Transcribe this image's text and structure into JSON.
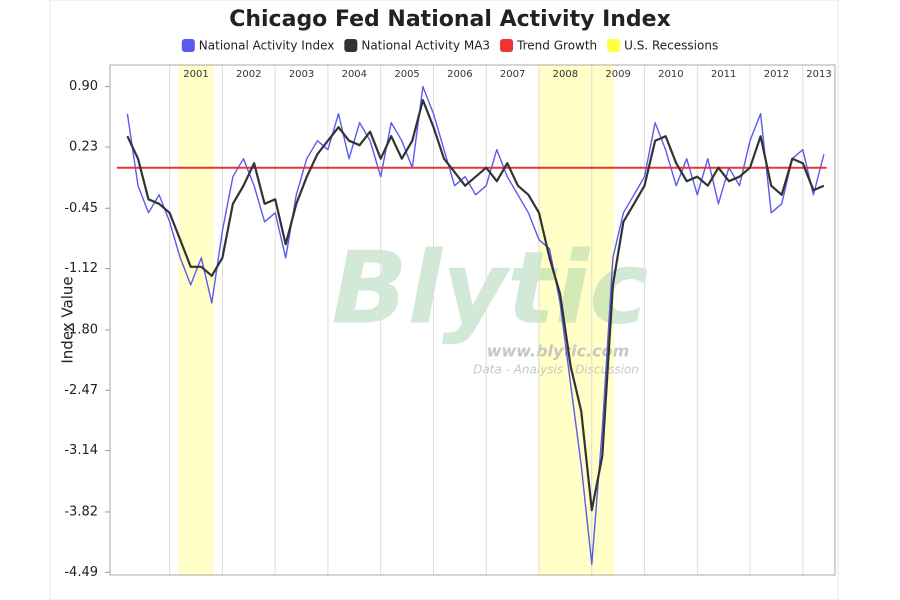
{
  "chart_data": {
    "type": "line",
    "title": "Chicago Fed National Activity Index",
    "y_label": "Index Value",
    "watermark": {
      "brand": "Blytic",
      "url": "www.blytic.com",
      "tagline": "Data - Analysis - Discussion"
    },
    "x": [
      2000.2,
      2000.4,
      2000.6,
      2000.8,
      2001.0,
      2001.2,
      2001.4,
      2001.6,
      2001.8,
      2002.0,
      2002.2,
      2002.4,
      2002.6,
      2002.8,
      2003.0,
      2003.2,
      2003.4,
      2003.6,
      2003.8,
      2004.0,
      2004.2,
      2004.4,
      2004.6,
      2004.8,
      2005.0,
      2005.2,
      2005.4,
      2005.6,
      2005.8,
      2006.0,
      2006.2,
      2006.4,
      2006.6,
      2006.8,
      2007.0,
      2007.2,
      2007.4,
      2007.6,
      2007.8,
      2008.0,
      2008.2,
      2008.4,
      2008.6,
      2008.8,
      2009.0,
      2009.2,
      2009.4,
      2009.6,
      2009.8,
      2010.0,
      2010.2,
      2010.4,
      2010.6,
      2010.8,
      2011.0,
      2011.2,
      2011.4,
      2011.6,
      2011.8,
      2012.0,
      2012.2,
      2012.4,
      2012.6,
      2012.8,
      2013.0,
      2013.2,
      2013.4
    ],
    "series": [
      {
        "name": "National Activity Index",
        "color": "#5a5aee",
        "values": [
          0.6,
          -0.2,
          -0.5,
          -0.3,
          -0.6,
          -1.0,
          -1.3,
          -1.0,
          -1.5,
          -0.7,
          -0.1,
          0.1,
          -0.2,
          -0.6,
          -0.5,
          -1.0,
          -0.3,
          0.1,
          0.3,
          0.2,
          0.6,
          0.1,
          0.5,
          0.3,
          -0.1,
          0.5,
          0.3,
          0.0,
          0.9,
          0.6,
          0.2,
          -0.2,
          -0.1,
          -0.3,
          -0.2,
          0.2,
          -0.1,
          -0.3,
          -0.5,
          -0.8,
          -0.9,
          -1.5,
          -2.4,
          -3.3,
          -4.4,
          -2.9,
          -1.0,
          -0.5,
          -0.3,
          -0.1,
          0.5,
          0.2,
          -0.2,
          0.1,
          -0.3,
          0.1,
          -0.4,
          0.0,
          -0.2,
          0.3,
          0.6,
          -0.5,
          -0.4,
          0.1,
          0.2,
          -0.3,
          0.15
        ]
      },
      {
        "name": "National Activity MA3",
        "color": "#333333",
        "values": [
          0.35,
          0.1,
          -0.35,
          -0.4,
          -0.5,
          -0.8,
          -1.1,
          -1.1,
          -1.2,
          -1.0,
          -0.4,
          -0.2,
          0.05,
          -0.4,
          -0.35,
          -0.85,
          -0.4,
          -0.1,
          0.15,
          0.3,
          0.45,
          0.3,
          0.25,
          0.4,
          0.1,
          0.35,
          0.1,
          0.3,
          0.75,
          0.45,
          0.1,
          -0.05,
          -0.2,
          -0.1,
          0.0,
          -0.15,
          0.05,
          -0.2,
          -0.3,
          -0.5,
          -1.0,
          -1.4,
          -2.2,
          -2.7,
          -3.8,
          -3.2,
          -1.3,
          -0.6,
          -0.4,
          -0.2,
          0.3,
          0.35,
          0.05,
          -0.15,
          -0.1,
          -0.2,
          0.0,
          -0.15,
          -0.1,
          0.0,
          0.35,
          -0.2,
          -0.3,
          0.1,
          0.05,
          -0.25,
          -0.2
        ]
      },
      {
        "name": "Trend Growth",
        "color": "#ee3333",
        "x": [
          2000.0,
          2013.45
        ],
        "values": [
          0,
          0
        ]
      },
      {
        "name": "U.S. Recessions",
        "color": "#ffff44",
        "ranges": [
          [
            2001.17,
            2001.83
          ],
          [
            2007.98,
            2009.42
          ]
        ]
      }
    ],
    "xlim": [
      1999.87,
      2013.61
    ],
    "xticks": [
      {
        "value": 2001,
        "label": "2001"
      },
      {
        "value": 2002,
        "label": "2002"
      },
      {
        "value": 2003,
        "label": "2003"
      },
      {
        "value": 2004,
        "label": "2004"
      },
      {
        "value": 2005,
        "label": "2005"
      },
      {
        "value": 2006,
        "label": "2006"
      },
      {
        "value": 2007,
        "label": "2007"
      },
      {
        "value": 2008,
        "label": "2008"
      },
      {
        "value": 2009,
        "label": "2009"
      },
      {
        "value": 2010,
        "label": "2010"
      },
      {
        "value": 2011,
        "label": "2011"
      },
      {
        "value": 2012,
        "label": "2012"
      },
      {
        "value": 2013,
        "label": "2013"
      }
    ],
    "ylim": [
      -4.52,
      1.14
    ],
    "yticks": [
      {
        "value": 0.9,
        "label": "0.90"
      },
      {
        "value": 0.23,
        "label": "0.23"
      },
      {
        "value": -0.45,
        "label": "-0.45"
      },
      {
        "value": -1.12,
        "label": "-1.12"
      },
      {
        "value": -1.8,
        "label": "-1.80"
      },
      {
        "value": -2.47,
        "label": "-2.47"
      },
      {
        "value": -3.14,
        "label": "-3.14"
      },
      {
        "value": -3.82,
        "label": "-3.82"
      },
      {
        "value": -4.49,
        "label": "-4.49"
      }
    ],
    "grid": true,
    "legend": "top"
  }
}
